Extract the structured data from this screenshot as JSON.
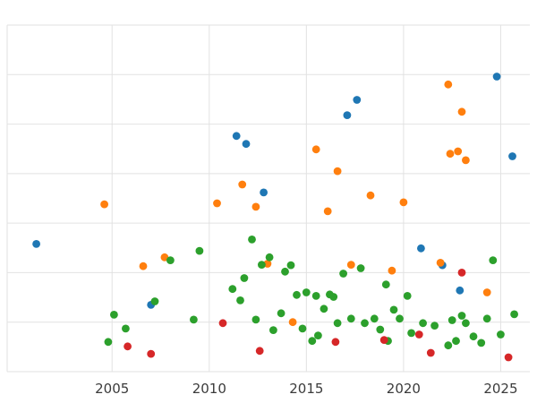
{
  "chart_data": {
    "type": "scatter",
    "title": "",
    "xlabel": "",
    "ylabel": "",
    "x_ticks": [
      2005,
      2010,
      2015,
      2020,
      2025
    ],
    "x_tick_labels": [
      "2005",
      "2010",
      "2015",
      "2020",
      "2025"
    ],
    "xlim": [
      1999.6,
      2026.5
    ],
    "ylim": [
      0,
      7
    ],
    "y_grid_step": 1,
    "grid": true,
    "legend": "none",
    "style": {
      "background": "#ffffff",
      "grid_color": "#e2e2e2",
      "tick_label_color": "#3b3b3b",
      "point_radius": 4.4
    },
    "series": [
      {
        "name": "blue",
        "color": "#1f77b4",
        "points": [
          [
            2001.1,
            2.58
          ],
          [
            2007.0,
            1.35
          ],
          [
            2011.4,
            4.76
          ],
          [
            2011.9,
            4.6
          ],
          [
            2012.8,
            3.62
          ],
          [
            2017.1,
            5.18
          ],
          [
            2017.6,
            5.49
          ],
          [
            2020.9,
            2.49
          ],
          [
            2022.0,
            2.15
          ],
          [
            2022.9,
            1.64
          ],
          [
            2024.8,
            5.96
          ],
          [
            2025.6,
            4.35
          ]
        ]
      },
      {
        "name": "orange",
        "color": "#ff7f0e",
        "points": [
          [
            2004.6,
            3.38
          ],
          [
            2006.6,
            2.13
          ],
          [
            2007.7,
            2.31
          ],
          [
            2010.4,
            3.4
          ],
          [
            2011.7,
            3.78
          ],
          [
            2012.4,
            3.33
          ],
          [
            2013.0,
            2.18
          ],
          [
            2014.3,
            1.0
          ],
          [
            2015.5,
            4.49
          ],
          [
            2016.1,
            3.24
          ],
          [
            2016.6,
            4.05
          ],
          [
            2017.3,
            2.16
          ],
          [
            2018.3,
            3.56
          ],
          [
            2019.4,
            2.04
          ],
          [
            2020.0,
            3.42
          ],
          [
            2021.9,
            2.2
          ],
          [
            2022.3,
            5.8
          ],
          [
            2022.4,
            4.4
          ],
          [
            2022.8,
            4.45
          ],
          [
            2023.0,
            5.25
          ],
          [
            2023.2,
            4.27
          ],
          [
            2024.3,
            1.6
          ]
        ]
      },
      {
        "name": "green",
        "color": "#2ca02c",
        "points": [
          [
            2004.8,
            0.6
          ],
          [
            2005.1,
            1.15
          ],
          [
            2005.7,
            0.87
          ],
          [
            2007.2,
            1.42
          ],
          [
            2008.0,
            2.25
          ],
          [
            2009.2,
            1.05
          ],
          [
            2009.5,
            2.44
          ],
          [
            2011.2,
            1.67
          ],
          [
            2011.6,
            1.44
          ],
          [
            2011.8,
            1.89
          ],
          [
            2012.2,
            2.67
          ],
          [
            2012.4,
            1.05
          ],
          [
            2012.7,
            2.16
          ],
          [
            2013.1,
            2.31
          ],
          [
            2013.3,
            0.84
          ],
          [
            2013.7,
            1.18
          ],
          [
            2013.9,
            2.02
          ],
          [
            2014.2,
            2.15
          ],
          [
            2014.5,
            1.55
          ],
          [
            2014.8,
            0.87
          ],
          [
            2015.0,
            1.6
          ],
          [
            2015.3,
            0.62
          ],
          [
            2015.5,
            1.53
          ],
          [
            2015.6,
            0.73
          ],
          [
            2015.9,
            1.27
          ],
          [
            2016.2,
            1.56
          ],
          [
            2016.4,
            1.51
          ],
          [
            2016.6,
            0.98
          ],
          [
            2016.9,
            1.98
          ],
          [
            2017.3,
            1.07
          ],
          [
            2017.8,
            2.09
          ],
          [
            2018.0,
            0.98
          ],
          [
            2018.5,
            1.07
          ],
          [
            2018.8,
            0.85
          ],
          [
            2019.1,
            1.76
          ],
          [
            2019.2,
            0.62
          ],
          [
            2019.5,
            1.25
          ],
          [
            2019.8,
            1.07
          ],
          [
            2020.2,
            1.53
          ],
          [
            2020.4,
            0.78
          ],
          [
            2021.0,
            0.98
          ],
          [
            2021.6,
            0.93
          ],
          [
            2022.3,
            0.53
          ],
          [
            2022.5,
            1.04
          ],
          [
            2022.7,
            0.62
          ],
          [
            2023.0,
            1.13
          ],
          [
            2023.2,
            0.98
          ],
          [
            2023.6,
            0.71
          ],
          [
            2024.0,
            0.58
          ],
          [
            2024.3,
            1.07
          ],
          [
            2024.6,
            2.25
          ],
          [
            2025.0,
            0.75
          ],
          [
            2025.7,
            1.16
          ]
        ]
      },
      {
        "name": "red",
        "color": "#d62728",
        "points": [
          [
            2005.8,
            0.51
          ],
          [
            2007.0,
            0.36
          ],
          [
            2010.7,
            0.98
          ],
          [
            2012.6,
            0.42
          ],
          [
            2016.5,
            0.6
          ],
          [
            2019.0,
            0.64
          ],
          [
            2020.8,
            0.75
          ],
          [
            2021.4,
            0.38
          ],
          [
            2023.0,
            2.0
          ],
          [
            2025.4,
            0.29
          ]
        ]
      }
    ]
  }
}
